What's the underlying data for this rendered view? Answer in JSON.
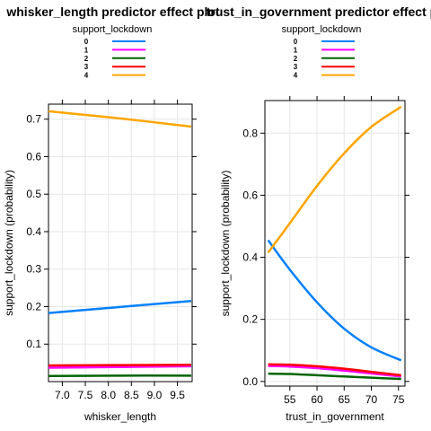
{
  "legend_levels": [
    {
      "label": "0",
      "color": "#0080ff"
    },
    {
      "label": "1",
      "color": "#ff00ff"
    },
    {
      "label": "2",
      "color": "#006400"
    },
    {
      "label": "3",
      "color": "#ff0000"
    },
    {
      "label": "4",
      "color": "#ffa500"
    }
  ],
  "chart_data": [
    {
      "type": "line",
      "title": "whisker_length predictor effect plot",
      "xlabel": "whisker_length",
      "ylabel": "support_lockdown (probability)",
      "legend_title": "support_lockdown",
      "legend_placement": "top",
      "grid": true,
      "xlim": [
        6.7,
        9.82
      ],
      "ylim": [
        0.0,
        0.74
      ],
      "x_ticks": [
        7.0,
        7.5,
        8.0,
        8.5,
        9.0,
        9.5
      ],
      "x_tick_labels": [
        "7.0",
        "7.5",
        "8.0",
        "8.5",
        "9.0",
        "9.5"
      ],
      "y_ticks": [
        0.1,
        0.2,
        0.3,
        0.4,
        0.5,
        0.6,
        0.7
      ],
      "y_tick_labels": [
        "0.1",
        "0.2",
        "0.3",
        "0.4",
        "0.5",
        "0.6",
        "0.7"
      ],
      "x": [
        6.7,
        8.25,
        9.8
      ],
      "series": [
        {
          "name": "0",
          "color": "#0080ff",
          "values": [
            0.183,
            0.199,
            0.215
          ]
        },
        {
          "name": "1",
          "color": "#ff00ff",
          "values": [
            0.037,
            0.039,
            0.041
          ]
        },
        {
          "name": "2",
          "color": "#006400",
          "values": [
            0.015,
            0.016,
            0.016
          ]
        },
        {
          "name": "3",
          "color": "#ff0000",
          "values": [
            0.043,
            0.044,
            0.045
          ]
        },
        {
          "name": "4",
          "color": "#ffa500",
          "values": [
            0.721,
            0.702,
            0.68
          ]
        }
      ]
    },
    {
      "type": "line",
      "title": "trust_in_government predictor effect plot",
      "xlabel": "trust_in_government",
      "ylabel": "support_lockdown (probability)",
      "legend_title": "support_lockdown",
      "legend_placement": "top",
      "grid": true,
      "xlim": [
        50.4,
        76.2
      ],
      "ylim": [
        -0.015,
        0.905
      ],
      "x_ticks": [
        55,
        60,
        65,
        70,
        75
      ],
      "x_tick_labels": [
        "55",
        "60",
        "65",
        "70",
        "75"
      ],
      "y_ticks": [
        0.0,
        0.2,
        0.4,
        0.6,
        0.8
      ],
      "y_tick_labels": [
        "0.0",
        "0.2",
        "0.4",
        "0.6",
        "0.8"
      ],
      "x": [
        51,
        55,
        60,
        65,
        70,
        75.5
      ],
      "series": [
        {
          "name": "0",
          "color": "#0080ff",
          "values": [
            0.455,
            0.36,
            0.255,
            0.17,
            0.11,
            0.068
          ]
        },
        {
          "name": "1",
          "color": "#ff00ff",
          "values": [
            0.05,
            0.048,
            0.043,
            0.035,
            0.026,
            0.016
          ]
        },
        {
          "name": "2",
          "color": "#006400",
          "values": [
            0.025,
            0.024,
            0.02,
            0.016,
            0.012,
            0.008
          ]
        },
        {
          "name": "3",
          "color": "#ff0000",
          "values": [
            0.055,
            0.054,
            0.049,
            0.041,
            0.031,
            0.02
          ]
        },
        {
          "name": "4",
          "color": "#ffa500",
          "values": [
            0.415,
            0.51,
            0.63,
            0.735,
            0.82,
            0.885
          ]
        }
      ]
    }
  ]
}
